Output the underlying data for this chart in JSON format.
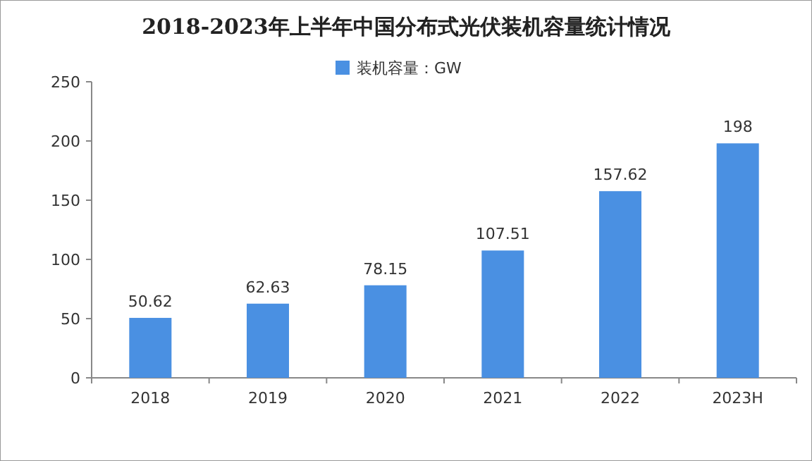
{
  "chart_data": {
    "type": "bar",
    "title": "2018-2023年上半年中国分布式光伏装机容量统计情况",
    "categories": [
      "2018",
      "2019",
      "2020",
      "2021",
      "2022",
      "2023H"
    ],
    "series": [
      {
        "name": "装机容量：GW",
        "color": "#4a90e2",
        "values": [
          50.62,
          62.63,
          78.15,
          107.51,
          157.62,
          198
        ]
      }
    ],
    "ylim": [
      0,
      250
    ],
    "yticks": [
      0,
      50,
      100,
      150,
      200,
      250
    ],
    "data_labels": true,
    "legend": "top",
    "grid": false
  }
}
